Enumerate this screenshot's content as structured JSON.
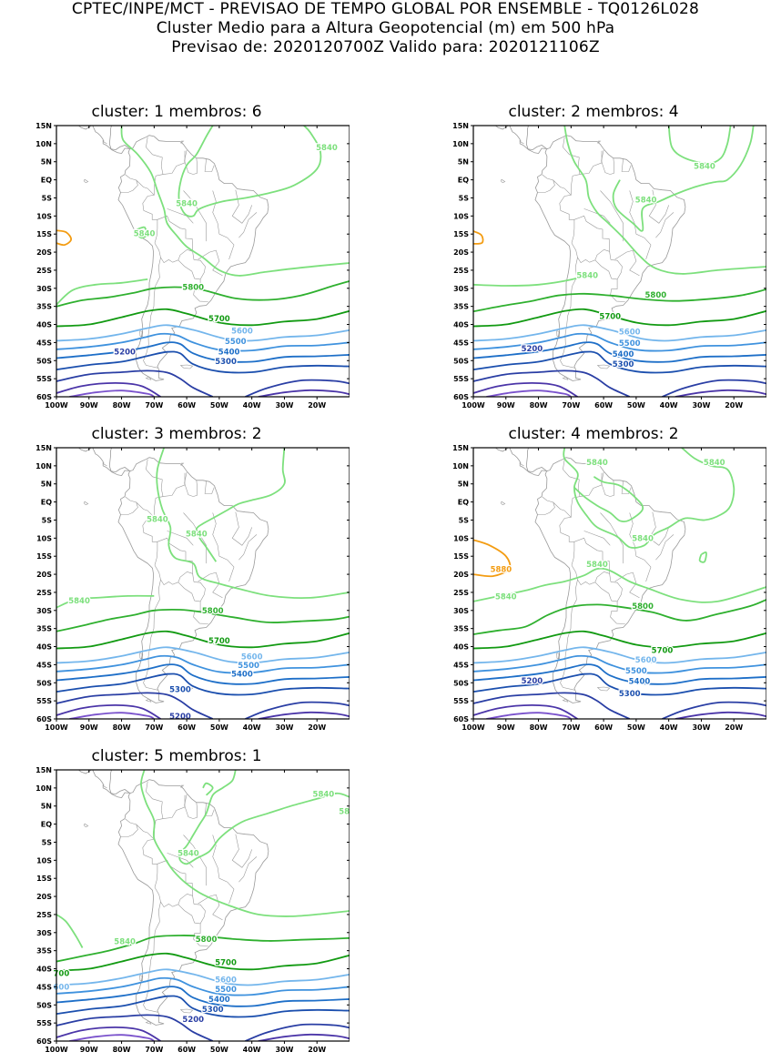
{
  "header": {
    "line1": "CPTEC/INPE/MCT - PREVISAO DE TEMPO GLOBAL POR ENSEMBLE - TQ0126L028",
    "line2": "Cluster Medio para a Altura Geopotencial (m) em 500 hPa",
    "line3": "Previsao de: 2020120700Z    Valido para: 2020121106Z"
  },
  "axes": {
    "lat_labels": [
      "15N",
      "10N",
      "5N",
      "EQ",
      "5S",
      "10S",
      "15S",
      "20S",
      "25S",
      "30S",
      "35S",
      "40S",
      "45S",
      "50S",
      "55S",
      "60S"
    ],
    "lon_labels": [
      "100W",
      "90W",
      "80W",
      "70W",
      "60W",
      "50W",
      "40W",
      "30W",
      "20W"
    ]
  },
  "colors": {
    "c5880": "#f39c12",
    "c5840": "#7de07d",
    "c5800": "#2fb02f",
    "c5700": "#129a12",
    "c5600": "#74b6ec",
    "c5500": "#3f92de",
    "c5400": "#1e6fc8",
    "c5300": "#1b4fae",
    "c5200": "#2a3ea4",
    "c5100": "#4b35a8",
    "c5000": "#7a52cc",
    "land": "#9a9a9a"
  },
  "panels": [
    {
      "title": "cluster: 1   membros: 6",
      "labels": {
        "c5840a": "5840",
        "c5840b": "5840",
        "c5840c": "5840",
        "c5800": "5800",
        "c5700": "5700",
        "c5600": "5600",
        "c5500": "5500",
        "c5400": "5400",
        "c5300": "5300",
        "c5200": "5200"
      }
    },
    {
      "title": "cluster: 2   membros: 4",
      "labels": {
        "c5840a": "5840",
        "c5840b": "5840",
        "c5840c": "5840",
        "c5800": "5800",
        "c5700": "5700",
        "c5600": "5600",
        "c5500": "5500",
        "c5400": "5400",
        "c5300": "5300",
        "c5200": "5200"
      }
    },
    {
      "title": "cluster: 3   membros: 2",
      "labels": {
        "c5840a": "5840",
        "c5840b": "5840",
        "c5840c": "5840",
        "c5800": "5800",
        "c5700": "5700",
        "c5600": "5600",
        "c5500": "5500",
        "c5400": "5400",
        "c5300": "5300",
        "c5200": "5200"
      }
    },
    {
      "title": "cluster: 4   membros: 2",
      "labels": {
        "c5880": "5880",
        "c5840a": "5840",
        "c5840b": "5840",
        "c5840c": "5840",
        "c5840d": "5840",
        "c5840e": "5840",
        "c5800": "5800",
        "c5700": "5700",
        "c5600": "5600",
        "c5500": "5500",
        "c5400": "5400",
        "c5300": "5300",
        "c5200": "5200"
      }
    },
    {
      "title": "cluster: 5   membros: 1",
      "labels": {
        "c5840a": "5840",
        "c5840b": "5840",
        "c5840c": "5840",
        "c5840d": "584",
        "c5800": "5800",
        "c5700l": "700",
        "c5700": "5700",
        "c5600l": "600",
        "c5600": "5600",
        "c5500": "5500",
        "c5400": "5400",
        "c5300": "5300",
        "c5200": "5200"
      }
    }
  ]
}
